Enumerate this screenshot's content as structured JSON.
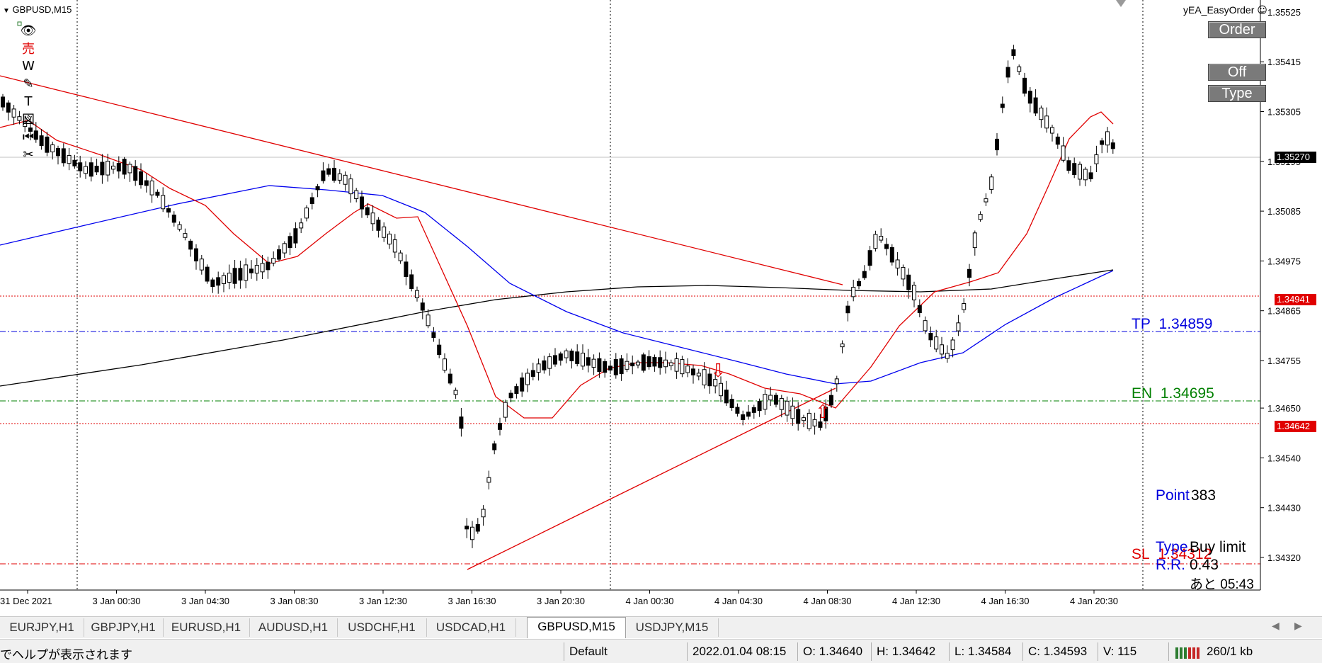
{
  "chart": {
    "symbol_title": "GBPUSD,M15",
    "ea_name": "yEA_EasyOrder",
    "ea_icon": "smiley-icon",
    "buttons": {
      "order": "Order",
      "off": "Off",
      "type": "Type"
    },
    "toolbar_icons": [
      "eye-icon",
      "sell-kanji-icon",
      "w-icon",
      "pencil-icon",
      "text-icon",
      "image-icon",
      "rewind-icon",
      "scissors-icon"
    ],
    "toolbar_glyphs": [
      "👁",
      "売",
      "W",
      "✎",
      "T",
      "図",
      "⏮",
      "✂"
    ],
    "price_axis": {
      "labels": [
        "1.35525",
        "1.35415",
        "1.35305",
        "1.35195",
        "1.35085",
        "1.34975",
        "1.34865",
        "1.34755",
        "1.34650",
        "1.34540",
        "1.34430",
        "1.34320"
      ]
    },
    "time_axis": {
      "labels": [
        "31 Dec 2021",
        "3 Jan 00:30",
        "3 Jan 04:30",
        "3 Jan 08:30",
        "3 Jan 12:30",
        "3 Jan 16:30",
        "3 Jan 20:30",
        "4 Jan 00:30",
        "4 Jan 04:30",
        "4 Jan 08:30",
        "4 Jan 12:30",
        "4 Jan 16:30",
        "4 Jan 20:30"
      ]
    },
    "price_tags": {
      "current": {
        "text": "1.35270",
        "bg": "#000000"
      },
      "upper_red": {
        "text": "1.34941",
        "bg": "#e00000"
      },
      "lower_red": {
        "text": "1.34642",
        "bg": "#e00000"
      }
    },
    "levels": {
      "tp": {
        "label": "TP",
        "value": "1.34859",
        "color": "#0000dd"
      },
      "en": {
        "label": "EN",
        "value": "1.34695",
        "color": "#008000"
      },
      "sl": {
        "label": "SL",
        "value": "1.34312",
        "color": "#e00000"
      }
    },
    "info": {
      "point_label": "Point",
      "point_value": "383",
      "type_label": "Type",
      "type_value": "Buy limit",
      "rr_label": "R.R.",
      "rr_value": "0.43",
      "remaining": "あと 05:43"
    },
    "colors": {
      "ma_fast": "#e00000",
      "ma_mid": "#0000ee",
      "ma_slow": "#000000",
      "trendline": "#e00000"
    }
  },
  "tabs": {
    "items": [
      "EURJPY,H1",
      "GBPJPY,H1",
      "EURUSD,H1",
      "AUDUSD,H1",
      "USDCHF,H1",
      "USDCAD,H1",
      "GBPUSD,M15",
      "USDJPY,M15"
    ],
    "active": "GBPUSD,M15"
  },
  "status": {
    "help": "でヘルプが表示されます",
    "profile": "Default",
    "datetime": "2022.01.04 08:15",
    "open": "O: 1.34640",
    "high": "H: 1.34642",
    "low": "L: 1.34584",
    "close": "C: 1.34593",
    "volume": "V: 115",
    "traffic": "260/1 kb"
  }
}
